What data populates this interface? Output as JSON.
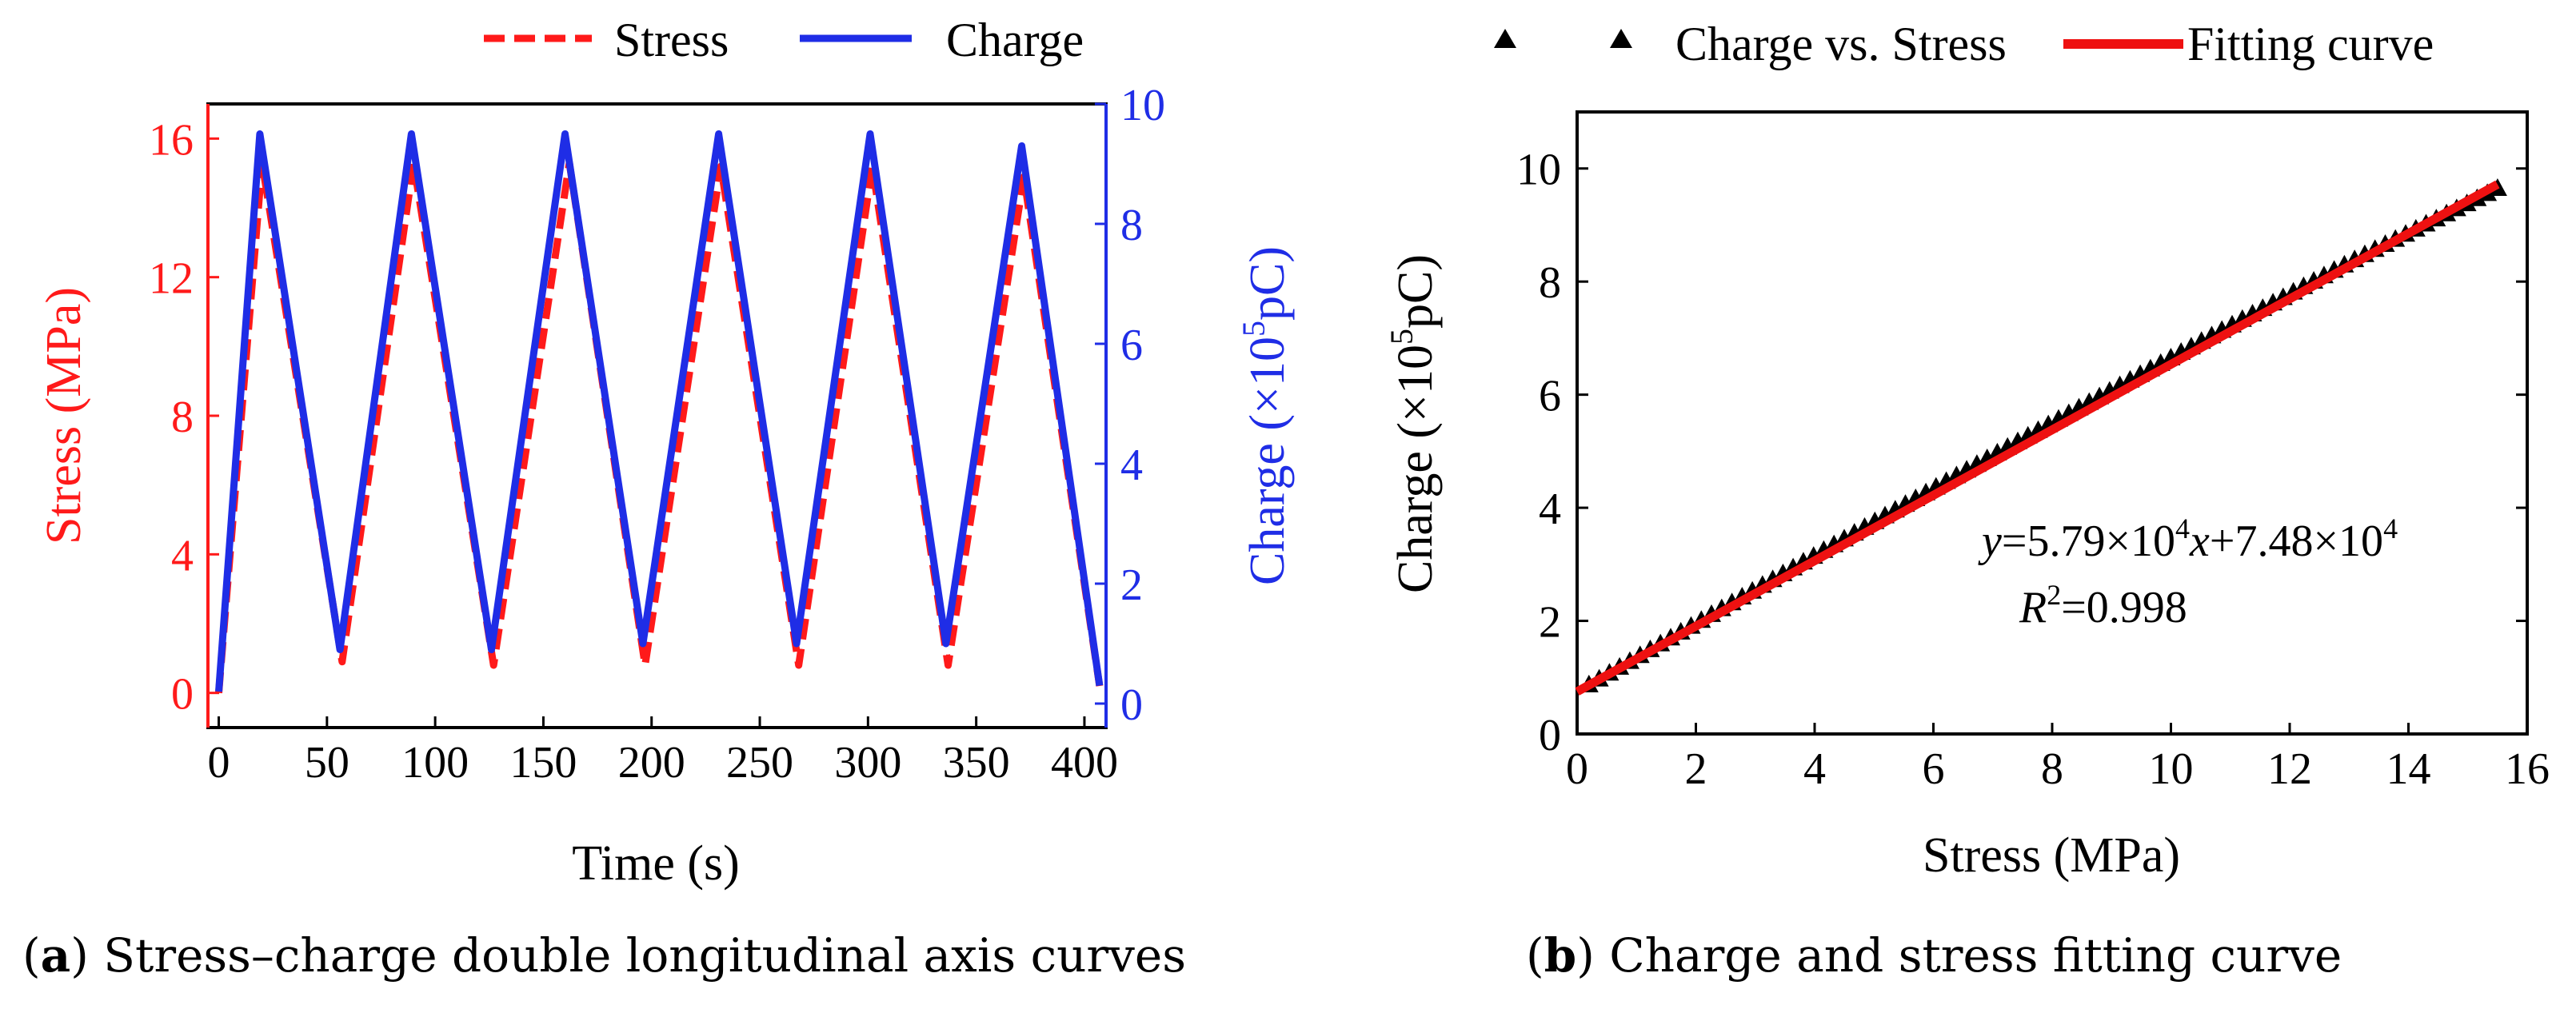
{
  "panels": {
    "a": {
      "caption_prefix": "a",
      "caption_text": ") Stress–charge double longitudinal axis curves"
    },
    "b": {
      "caption_prefix": "b",
      "caption_text": ") Charge and stress fitting curve"
    }
  },
  "colors": {
    "stress": "#ff1a1a",
    "charge": "#1f2de6",
    "scatter": "#000000",
    "fit": "#ee1111",
    "axis": "#000000"
  },
  "chart_data": [
    {
      "type": "line",
      "title": "",
      "xlabel": "Time (s)",
      "ylabel_left": "Stress (MPa)",
      "ylabel_right_prefix": "Charge (×10",
      "ylabel_right_sup": "5",
      "ylabel_right_suffix": "pC)",
      "xlim": [
        -5,
        410
      ],
      "ylim_left": [
        -1,
        17
      ],
      "ylim_right": [
        -0.4,
        10
      ],
      "xticks": [
        0,
        50,
        100,
        150,
        200,
        250,
        300,
        350,
        400
      ],
      "yticks_left": [
        0,
        4,
        8,
        12,
        16
      ],
      "yticks_right": [
        0,
        2,
        4,
        6,
        8,
        10
      ],
      "legend_position": "top",
      "series": [
        {
          "name": "Stress",
          "axis": "left",
          "style": "dashed",
          "x": [
            0,
            20,
            57,
            90,
            127,
            162,
            197,
            232,
            268,
            302,
            337,
            372,
            407
          ],
          "y": [
            0,
            15.3,
            0.9,
            15.3,
            0.8,
            15.3,
            0.8,
            15.2,
            0.8,
            15.2,
            0.8,
            14.9,
            0.2
          ]
        },
        {
          "name": "Charge",
          "axis": "right",
          "style": "solid",
          "x": [
            0,
            19,
            56,
            89,
            126,
            160,
            196,
            231,
            267,
            301,
            336,
            371,
            407
          ],
          "y": [
            0.2,
            9.5,
            0.9,
            9.5,
            0.9,
            9.5,
            1.0,
            9.5,
            1.0,
            9.5,
            1.0,
            9.3,
            0.3
          ]
        }
      ]
    },
    {
      "type": "scatter",
      "title": "",
      "xlabel": "Stress (MPa)",
      "ylabel_prefix": "Charge (×10",
      "ylabel_sup": "5",
      "ylabel_suffix": "pC)",
      "xlim": [
        0,
        16
      ],
      "ylim": [
        0,
        11
      ],
      "xticks": [
        0,
        2,
        4,
        6,
        8,
        10,
        12,
        14,
        16
      ],
      "yticks": [
        0,
        2,
        4,
        6,
        8,
        10
      ],
      "legend_position": "top",
      "series": [
        {
          "name": "Charge vs. Stress",
          "marker": "triangle",
          "x_start": 0.2,
          "x_end": 15.5,
          "count": 90,
          "relation": "y = 0.579 x + 0.748 (data values in units of 10^5 pC)"
        },
        {
          "name": "Fitting curve",
          "style": "solid",
          "x": [
            0,
            15.5
          ],
          "y": [
            0.748,
            9.72
          ]
        }
      ],
      "annotation": {
        "eq_y": "y",
        "eq_mid1": "=5.79×10",
        "eq_sup1": "4",
        "eq_x": "x",
        "eq_mid2": "+7.48×10",
        "eq_sup2": "4",
        "r2_R": "R",
        "r2_sup": "2",
        "r2_rest": "=0.998"
      }
    }
  ]
}
